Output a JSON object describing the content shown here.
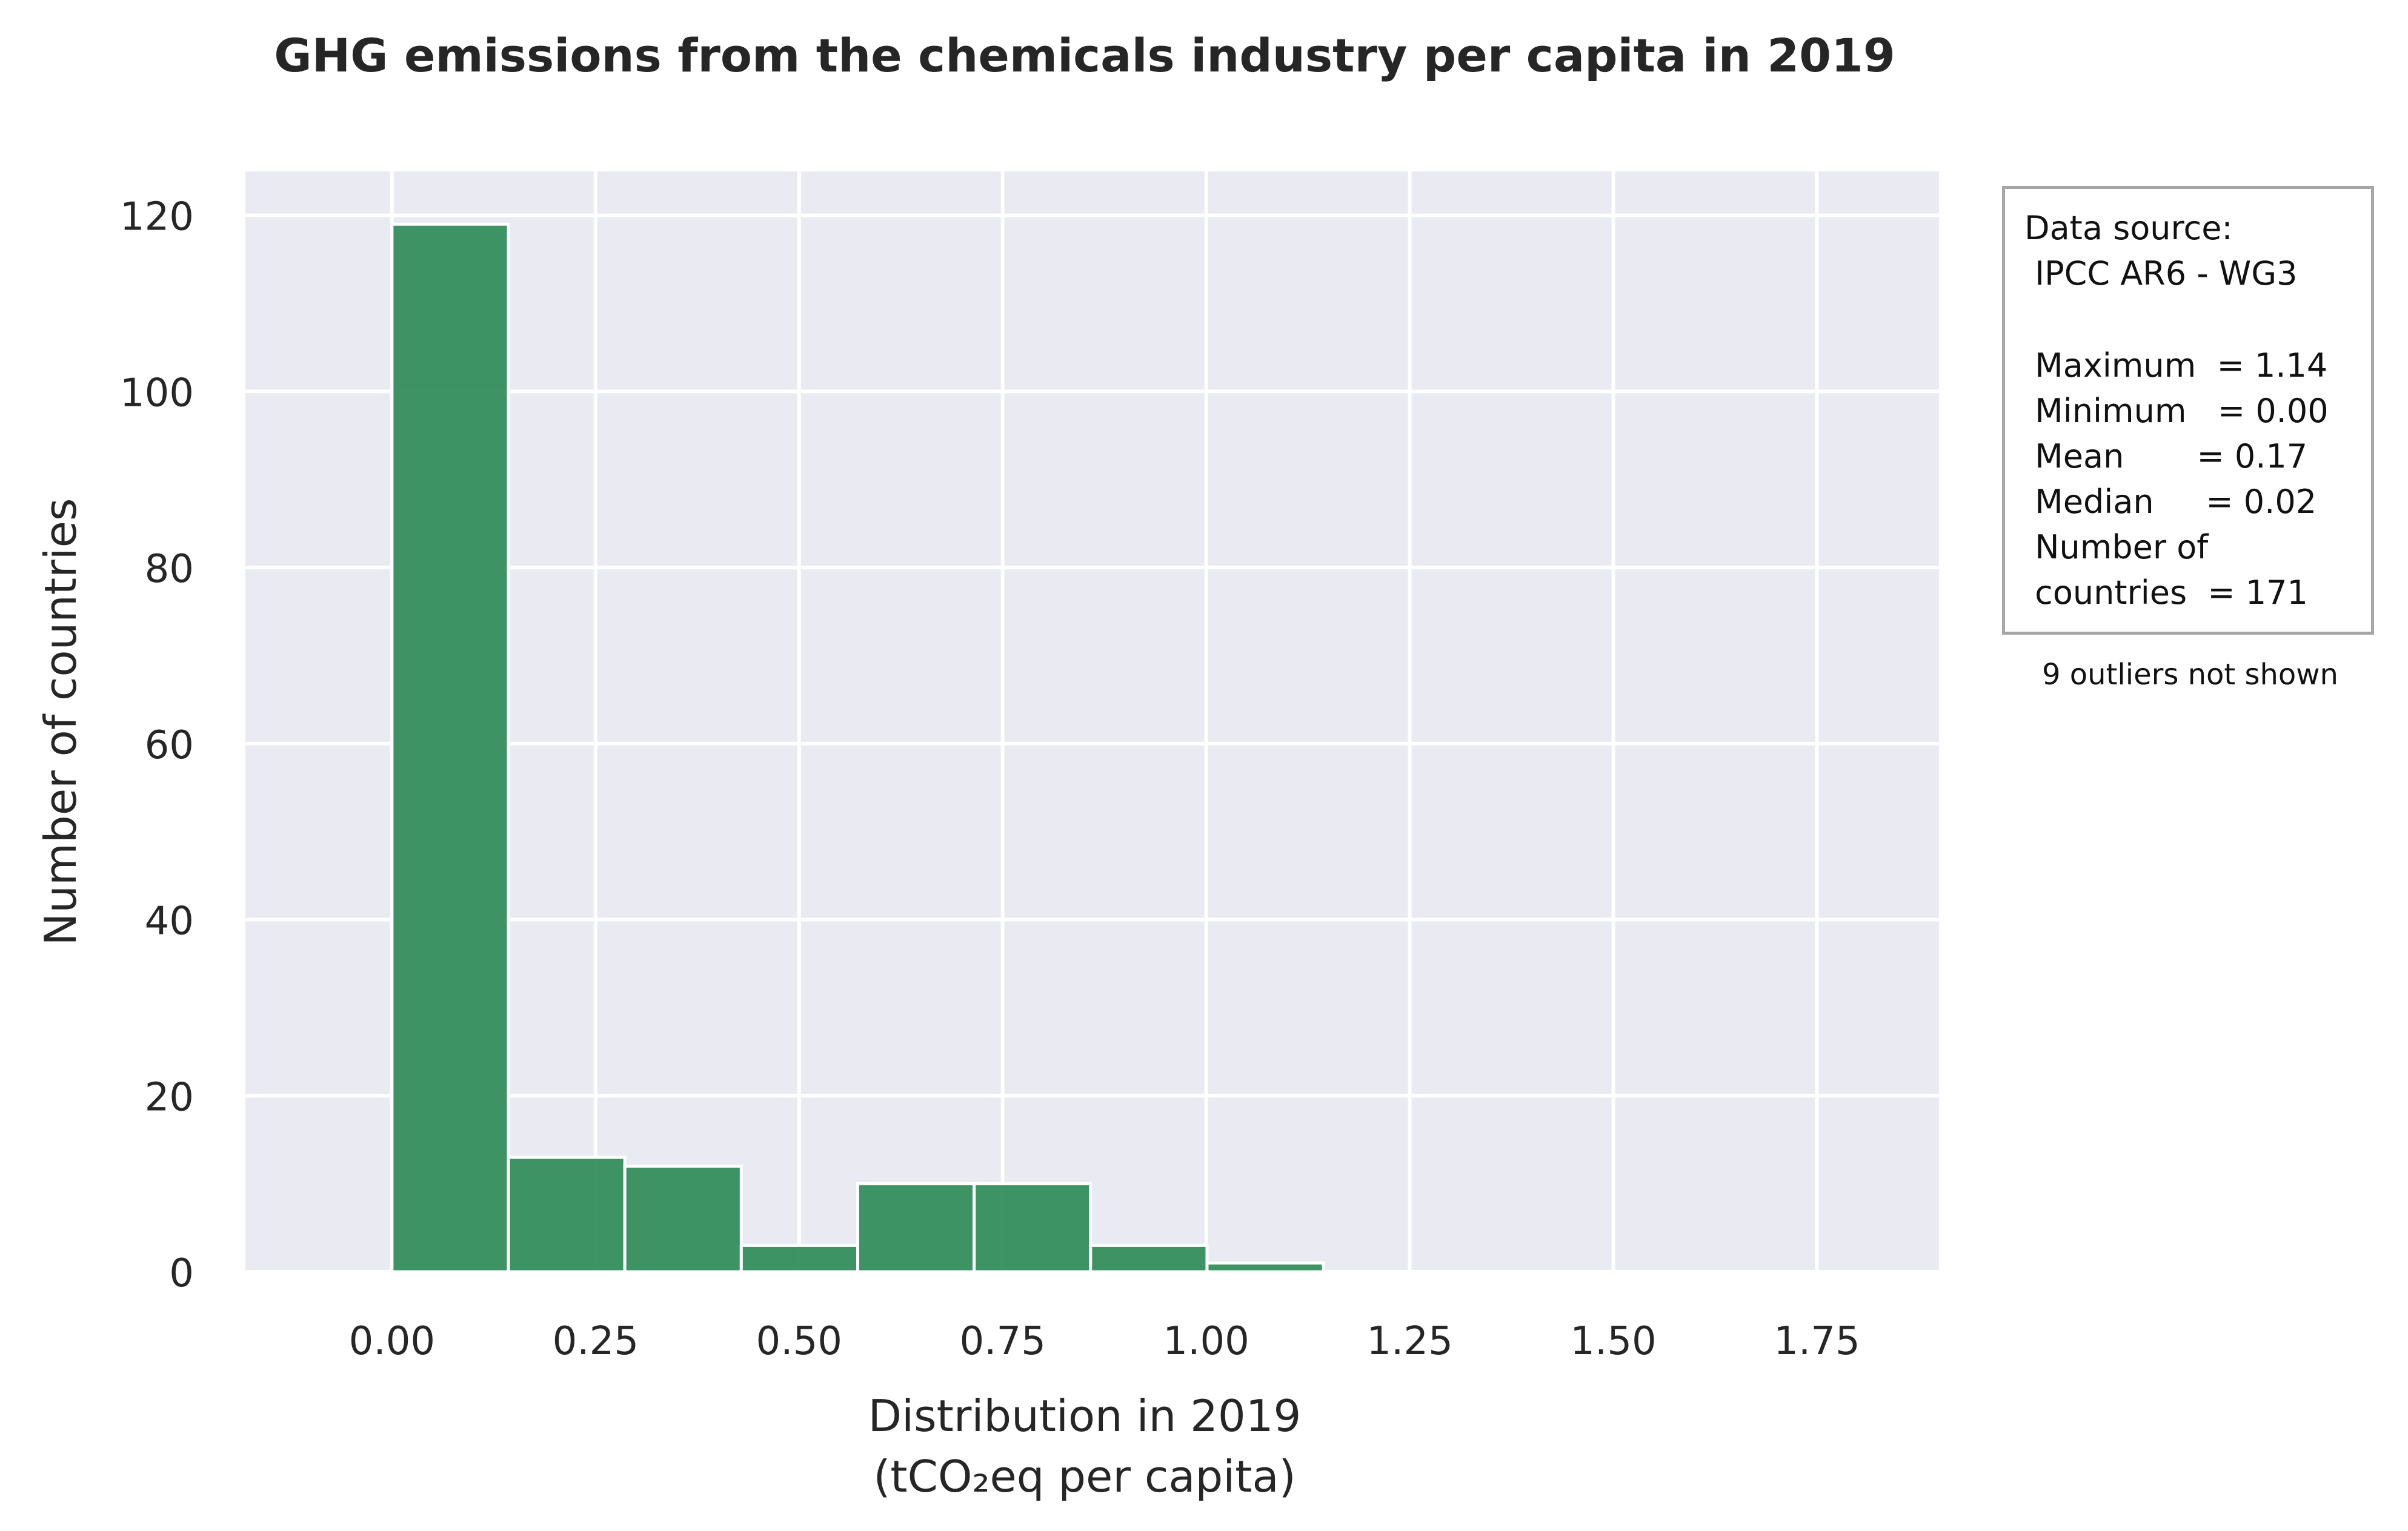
{
  "chart_data": {
    "type": "bar",
    "title": "GHG emissions from the chemicals industry per capita in 2019",
    "xlabel": "Distribution in 2019",
    "xlabel_line2": "(tCO₂eq per capita)",
    "ylabel": "Number of countries",
    "xlim": [
      -0.18,
      1.9
    ],
    "ylim": [
      0,
      125
    ],
    "x_ticks": [
      0.0,
      0.25,
      0.5,
      0.75,
      1.0,
      1.25,
      1.5,
      1.75
    ],
    "x_tick_labels": [
      "0.00",
      "0.25",
      "0.50",
      "0.75",
      "1.00",
      "1.25",
      "1.50",
      "1.75"
    ],
    "y_ticks": [
      0,
      20,
      40,
      60,
      80,
      100,
      120
    ],
    "y_tick_labels": [
      "0",
      "20",
      "40",
      "60",
      "80",
      "100",
      "120"
    ],
    "grid": true,
    "bar_color": "#2e8b57",
    "background_color": "#eaeaf2",
    "bins": [
      {
        "start": 0.0,
        "end": 0.143,
        "count": 119
      },
      {
        "start": 0.143,
        "end": 0.286,
        "count": 13
      },
      {
        "start": 0.286,
        "end": 0.429,
        "count": 12
      },
      {
        "start": 0.429,
        "end": 0.572,
        "count": 3
      },
      {
        "start": 0.572,
        "end": 0.715,
        "count": 10
      },
      {
        "start": 0.715,
        "end": 0.858,
        "count": 10
      },
      {
        "start": 0.858,
        "end": 1.001,
        "count": 3
      },
      {
        "start": 1.001,
        "end": 1.144,
        "count": 1
      }
    ]
  },
  "info_box": {
    "lines": [
      "Data source:",
      " IPCC AR6 - WG3",
      "",
      " Maximum  = 1.14",
      " Minimum   = 0.00",
      " Mean       = 0.17",
      " Median     = 0.02",
      " Number of",
      " countries  = 171"
    ]
  },
  "outliers_note": "9 outliers not shown"
}
